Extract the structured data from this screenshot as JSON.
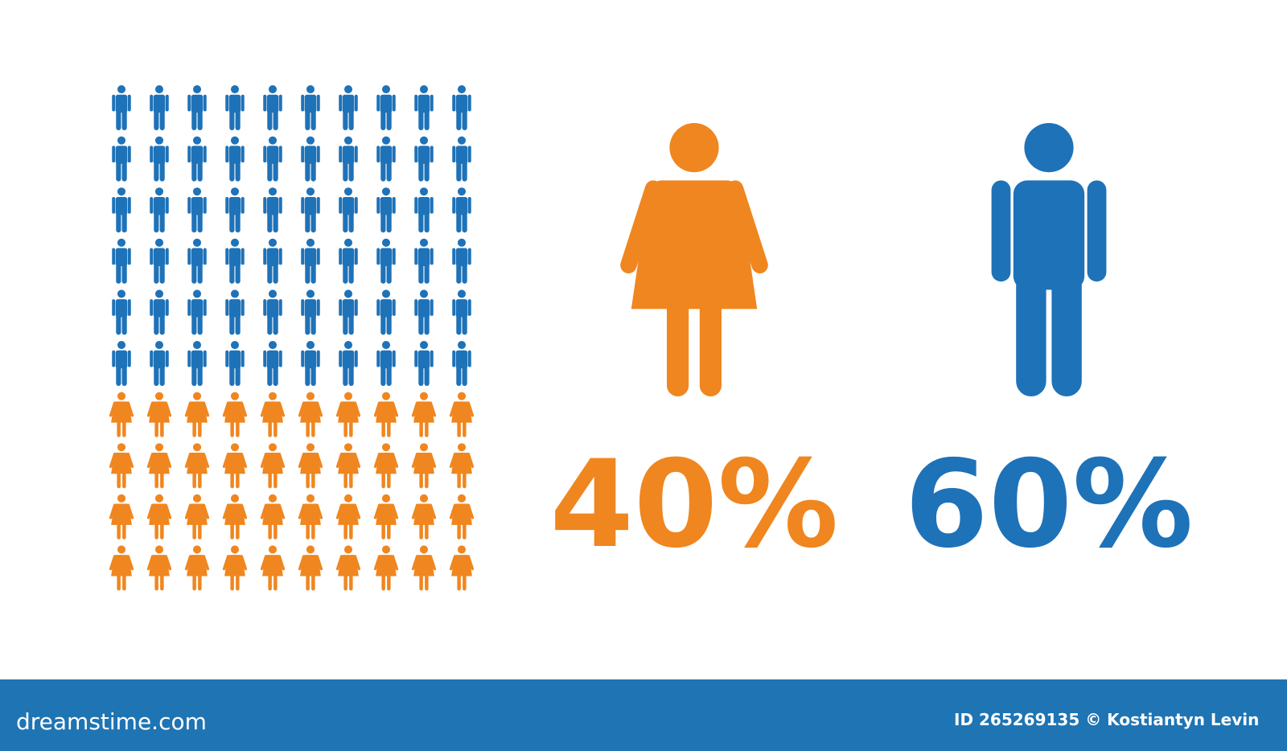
{
  "chart_data": {
    "type": "pictogram",
    "values": [
      40,
      60
    ],
    "value_labels": [
      "40%",
      "60%"
    ],
    "colors": [
      "#f0861f",
      "#1e72b8"
    ]
  },
  "footer": {
    "left": "dreamstime.com",
    "right": "ID 265269135 © Kostiantyn Levin"
  }
}
